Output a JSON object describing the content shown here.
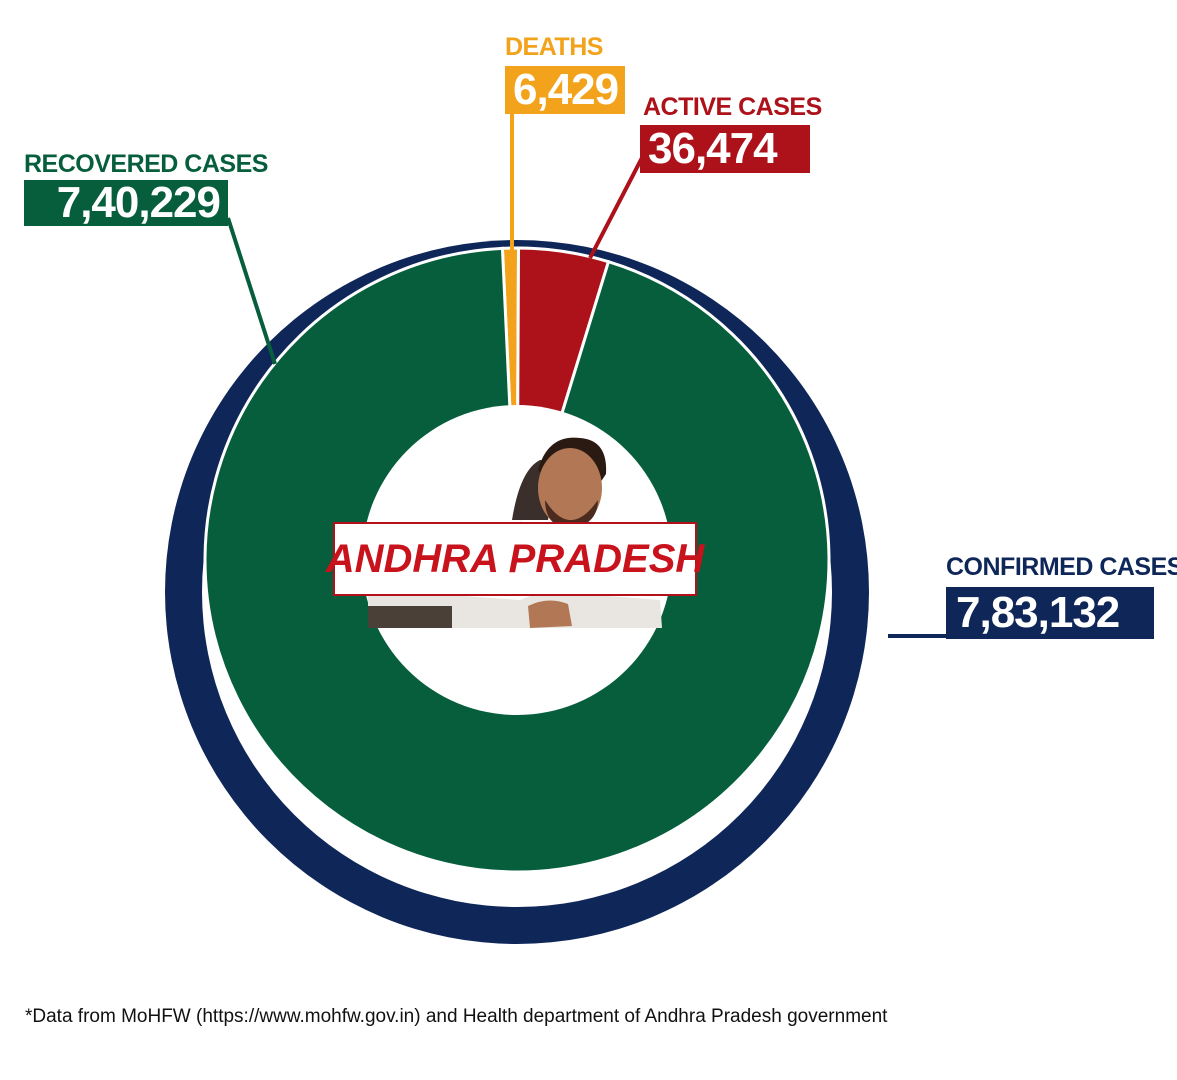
{
  "chart_data": {
    "type": "pie",
    "outer_ring": {
      "name": "CONFIRMED CASES",
      "value": 783132,
      "value_label": "7,83,132",
      "color": "#0f2659"
    },
    "slices": [
      {
        "name": "RECOVERED CASES",
        "value": 740229,
        "value_label": "7,40,229",
        "color": "#075e3d"
      },
      {
        "name": "DEATHS",
        "value": 6429,
        "value_label": "6,429",
        "color": "#f2a21b"
      },
      {
        "name": "ACTIVE CASES",
        "value": 36474,
        "value_label": "36,474",
        "color": "#ad1119"
      }
    ],
    "center_label": "ANDHRA PRADESH"
  },
  "footnote": "*Data from MoHFW (https://www.mohfw.gov.in) and Health department of Andhra Pradesh government",
  "colors": {
    "confirmed": "#0f2659",
    "recovered": "#075e3d",
    "deaths": "#f2a21b",
    "active": "#ad1119",
    "center_text": "#c8121c"
  }
}
